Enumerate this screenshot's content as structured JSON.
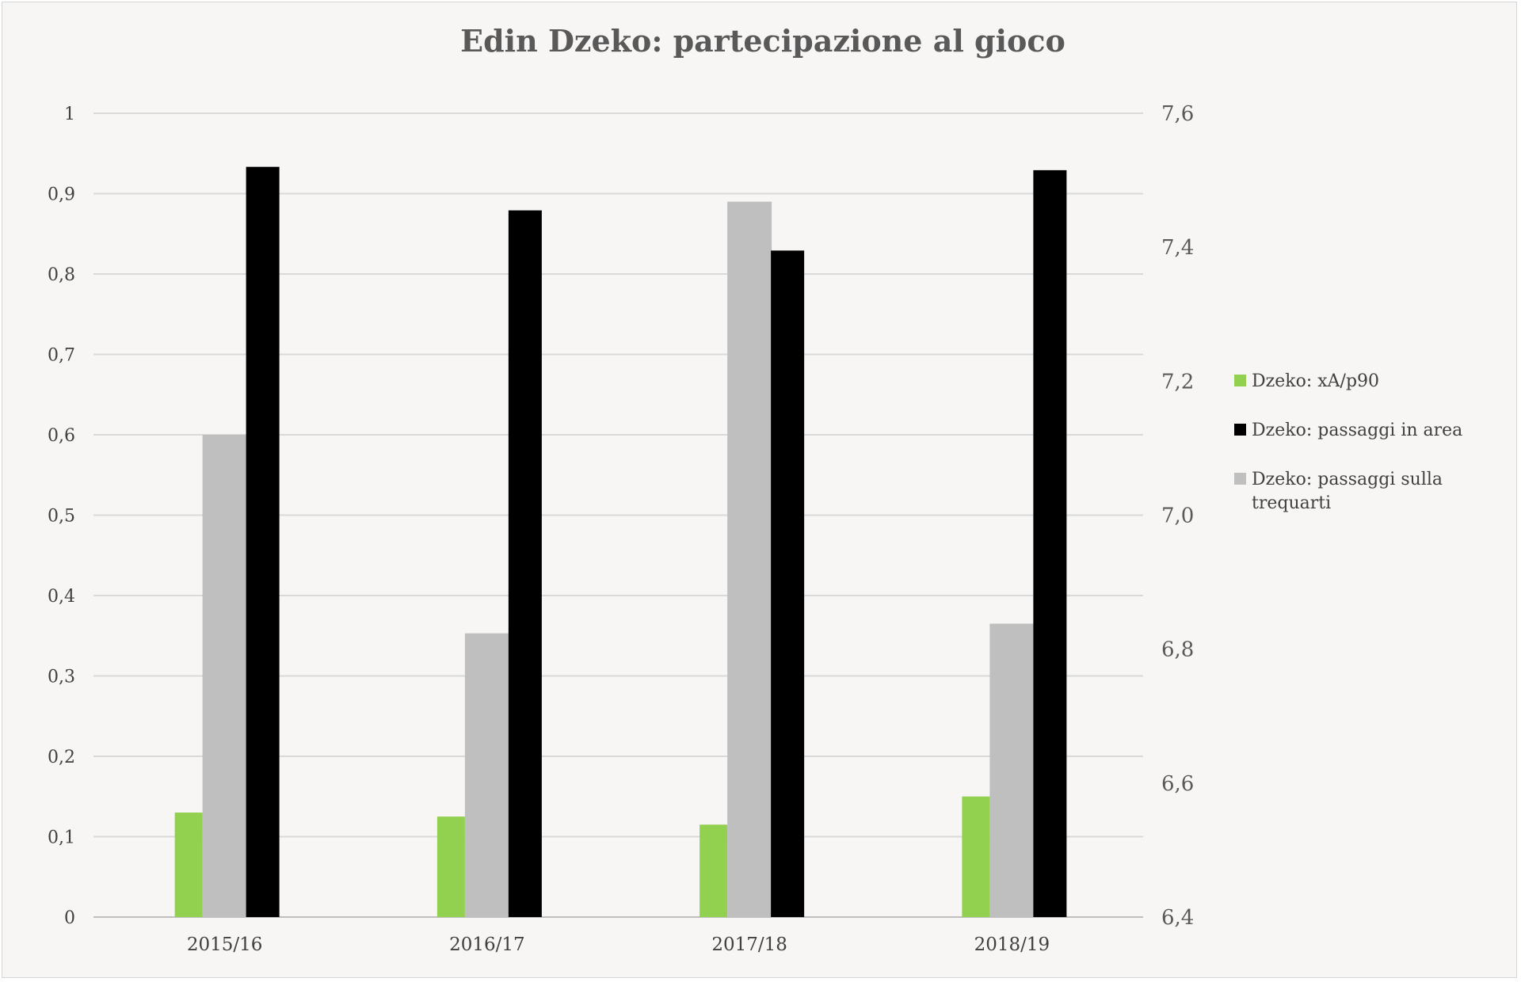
{
  "chart_data": {
    "type": "bar",
    "title": "Edin Dzeko: partecipazione al gioco",
    "categories": [
      "2015/16",
      "2016/17",
      "2017/18",
      "2018/19"
    ],
    "y_left": {
      "range": [
        0,
        1
      ],
      "ticks": [
        "0",
        "0,1",
        "0,2",
        "0,3",
        "0,4",
        "0,5",
        "0,6",
        "0,7",
        "0,8",
        "0,9",
        "1"
      ]
    },
    "y_right": {
      "range": [
        6.4,
        7.6
      ],
      "ticks": [
        "6,4",
        "6,6",
        "6,8",
        "7,0",
        "7,2",
        "7,4",
        "7,6"
      ]
    },
    "grid": true,
    "legend_position": "right",
    "series": [
      {
        "name": "Dzeko: xA/p90",
        "axis": "left",
        "color": "#92d050",
        "values": [
          0.13,
          0.125,
          0.115,
          0.15
        ]
      },
      {
        "name": "Dzeko: passaggi sulla trequarti",
        "axis": "left",
        "color": "#bfbfbf",
        "values": [
          0.6,
          0.353,
          0.89,
          0.365
        ]
      },
      {
        "name": "Dzeko: passaggi in area",
        "axis": "right",
        "color": "#000000",
        "values": [
          7.52,
          7.455,
          7.395,
          7.515
        ]
      }
    ],
    "legend": [
      {
        "label_lines": [
          "Dzeko: xA/p90"
        ],
        "color": "#92d050"
      },
      {
        "label_lines": [
          "Dzeko: passaggi in area"
        ],
        "color": "#000000"
      },
      {
        "label_lines": [
          "Dzeko: passaggi sulla",
          "trequarti"
        ],
        "color": "#bfbfbf"
      }
    ]
  }
}
